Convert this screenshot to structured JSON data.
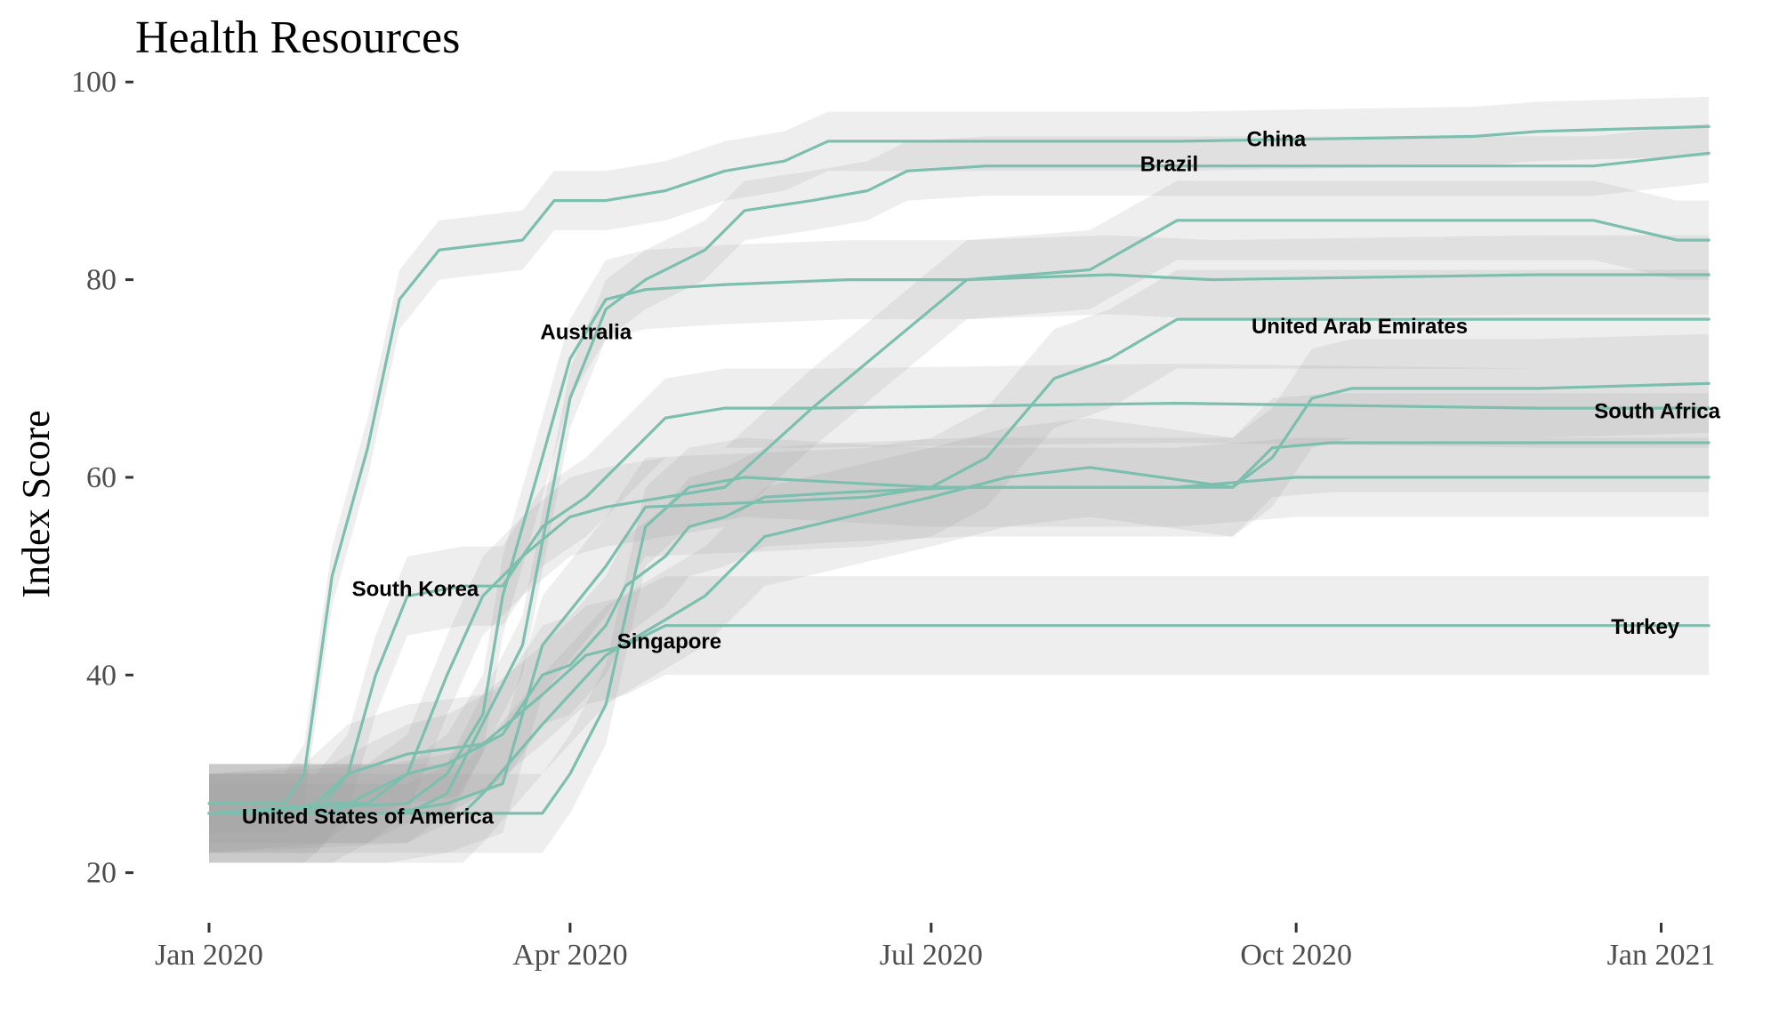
{
  "chart_data": {
    "type": "line",
    "title": "Health Resources",
    "xlabel": "",
    "ylabel": "Index Score",
    "ylim": [
      17,
      102
    ],
    "xlim": [
      "2020-01-01",
      "2021-01-15"
    ],
    "yticks": [
      20,
      40,
      60,
      80,
      100
    ],
    "xticks": [
      {
        "date": "2020-01-01",
        "label": "Jan 2020"
      },
      {
        "date": "2020-04-01",
        "label": "Apr 2020"
      },
      {
        "date": "2020-07-01",
        "label": "Jul 2020"
      },
      {
        "date": "2020-10-01",
        "label": "Oct 2020"
      },
      {
        "date": "2021-01-01",
        "label": "Jan 2021"
      }
    ],
    "grid": false,
    "legend": "none (direct labels)",
    "line_color": "#7dbfae",
    "band_color": "#999999",
    "series": [
      {
        "name": "China",
        "label_at": "2020-09-26",
        "uncertainty": 3,
        "points": [
          [
            "2020-01-01",
            27
          ],
          [
            "2020-01-20",
            27
          ],
          [
            "2020-01-25",
            30
          ],
          [
            "2020-02-01",
            50
          ],
          [
            "2020-02-10",
            63
          ],
          [
            "2020-02-18",
            78
          ],
          [
            "2020-02-28",
            83
          ],
          [
            "2020-03-20",
            84
          ],
          [
            "2020-03-28",
            88
          ],
          [
            "2020-04-10",
            88
          ],
          [
            "2020-04-25",
            89
          ],
          [
            "2020-05-10",
            91
          ],
          [
            "2020-05-25",
            92
          ],
          [
            "2020-06-05",
            94
          ],
          [
            "2020-07-15",
            94
          ],
          [
            "2020-09-01",
            94
          ],
          [
            "2020-11-15",
            94.5
          ],
          [
            "2020-12-01",
            95
          ],
          [
            "2021-01-13",
            95.5
          ]
        ]
      },
      {
        "name": "Brazil",
        "label_at": "2020-08-30",
        "uncertainty": 3,
        "points": [
          [
            "2020-01-01",
            26
          ],
          [
            "2020-02-20",
            26
          ],
          [
            "2020-03-01",
            28
          ],
          [
            "2020-03-20",
            43
          ],
          [
            "2020-04-01",
            68
          ],
          [
            "2020-04-10",
            77
          ],
          [
            "2020-04-20",
            80
          ],
          [
            "2020-05-05",
            83
          ],
          [
            "2020-05-15",
            87
          ],
          [
            "2020-06-01",
            88
          ],
          [
            "2020-06-15",
            89
          ],
          [
            "2020-06-25",
            91
          ],
          [
            "2020-07-15",
            91.5
          ],
          [
            "2020-10-01",
            91.5
          ],
          [
            "2020-12-15",
            91.5
          ],
          [
            "2021-01-13",
            92.8
          ]
        ]
      },
      {
        "name": "Australia",
        "label_at": "2020-04-05",
        "uncertainty": 4,
        "points": [
          [
            "2020-01-01",
            26
          ],
          [
            "2020-02-20",
            27
          ],
          [
            "2020-03-01",
            30
          ],
          [
            "2020-03-10",
            36
          ],
          [
            "2020-03-15",
            48
          ],
          [
            "2020-03-25",
            62
          ],
          [
            "2020-04-01",
            72
          ],
          [
            "2020-04-10",
            78
          ],
          [
            "2020-04-20",
            79
          ],
          [
            "2020-05-10",
            79.5
          ],
          [
            "2020-06-10",
            80
          ],
          [
            "2020-07-10",
            80
          ],
          [
            "2020-08-15",
            80.5
          ],
          [
            "2020-09-10",
            80
          ],
          [
            "2020-12-01",
            80.5
          ],
          [
            "2021-01-13",
            80.5
          ]
        ]
      },
      {
        "name": "Singapore",
        "label_at": "2020-04-26",
        "uncertainty": 5,
        "points": [
          [
            "2020-01-01",
            26
          ],
          [
            "2020-02-01",
            26
          ],
          [
            "2020-02-10",
            28
          ],
          [
            "2020-02-20",
            30
          ],
          [
            "2020-03-01",
            31
          ],
          [
            "2020-03-15",
            34
          ],
          [
            "2020-03-25",
            40
          ],
          [
            "2020-04-01",
            41
          ],
          [
            "2020-04-10",
            45
          ],
          [
            "2020-04-15",
            49
          ],
          [
            "2020-04-25",
            52
          ],
          [
            "2020-05-01",
            55
          ],
          [
            "2020-05-10",
            56
          ],
          [
            "2020-05-20",
            58
          ],
          [
            "2020-06-10",
            58.5
          ],
          [
            "2020-07-10",
            59
          ],
          [
            "2020-08-20",
            59
          ],
          [
            "2020-09-15",
            59
          ],
          [
            "2020-09-25",
            63
          ],
          [
            "2020-10-10",
            63.5
          ],
          [
            "2020-12-01",
            63.5
          ],
          [
            "2021-01-13",
            63.5
          ]
        ]
      },
      {
        "name": "United Arab Emirates",
        "label_at": "2020-10-17",
        "uncertainty": 5,
        "points": [
          [
            "2020-01-01",
            26
          ],
          [
            "2020-02-15",
            26
          ],
          [
            "2020-03-01",
            27
          ],
          [
            "2020-03-15",
            29
          ],
          [
            "2020-03-25",
            43
          ],
          [
            "2020-04-10",
            51
          ],
          [
            "2020-04-20",
            57
          ],
          [
            "2020-05-20",
            57.5
          ],
          [
            "2020-06-15",
            58
          ],
          [
            "2020-07-01",
            59
          ],
          [
            "2020-07-15",
            62
          ],
          [
            "2020-08-01",
            70
          ],
          [
            "2020-08-15",
            72
          ],
          [
            "2020-09-01",
            76
          ],
          [
            "2020-09-15",
            76
          ],
          [
            "2020-12-01",
            76
          ],
          [
            "2021-01-13",
            76
          ]
        ]
      },
      {
        "name": "South Africa",
        "label_at": "2020-12-31",
        "uncertainty": 5,
        "points": [
          [
            "2020-01-01",
            26
          ],
          [
            "2020-03-05",
            26
          ],
          [
            "2020-03-10",
            28
          ],
          [
            "2020-03-25",
            35
          ],
          [
            "2020-04-10",
            42
          ],
          [
            "2020-05-05",
            48
          ],
          [
            "2020-05-20",
            54
          ],
          [
            "2020-06-10",
            56
          ],
          [
            "2020-07-01",
            58
          ],
          [
            "2020-07-20",
            60
          ],
          [
            "2020-08-10",
            61
          ],
          [
            "2020-09-15",
            59
          ],
          [
            "2020-09-25",
            62
          ],
          [
            "2020-10-05",
            68
          ],
          [
            "2020-10-15",
            69
          ],
          [
            "2020-12-01",
            69
          ],
          [
            "2021-01-13",
            69.5
          ]
        ]
      },
      {
        "name": "Turkey",
        "label_at": "2020-12-28",
        "uncertainty": 5,
        "points": [
          [
            "2020-01-01",
            26
          ],
          [
            "2020-01-25",
            26
          ],
          [
            "2020-02-05",
            30
          ],
          [
            "2020-02-20",
            32
          ],
          [
            "2020-03-10",
            33
          ],
          [
            "2020-03-25",
            38
          ],
          [
            "2020-04-05",
            42
          ],
          [
            "2020-04-15",
            43
          ],
          [
            "2020-04-25",
            45
          ],
          [
            "2020-06-01",
            45
          ],
          [
            "2020-09-01",
            45
          ],
          [
            "2020-12-01",
            45
          ],
          [
            "2021-01-13",
            45
          ]
        ]
      },
      {
        "name": "South Korea",
        "label_at": "2020-02-22",
        "uncertainty": 4,
        "points": [
          [
            "2020-01-01",
            26
          ],
          [
            "2020-01-28",
            26
          ],
          [
            "2020-02-05",
            30
          ],
          [
            "2020-02-12",
            40
          ],
          [
            "2020-02-20",
            48
          ],
          [
            "2020-03-05",
            49
          ],
          [
            "2020-03-15",
            49
          ],
          [
            "2020-03-25",
            55
          ],
          [
            "2020-04-05",
            58
          ],
          [
            "2020-04-15",
            62
          ],
          [
            "2020-04-25",
            66
          ],
          [
            "2020-05-10",
            67
          ],
          [
            "2020-06-01",
            67
          ],
          [
            "2020-09-01",
            67.5
          ],
          [
            "2020-12-01",
            67
          ],
          [
            "2021-01-13",
            67
          ]
        ]
      },
      {
        "name": "United States of America",
        "label_at": "2020-02-10",
        "uncertainty": 4,
        "points": [
          [
            "2020-01-01",
            26
          ],
          [
            "2020-02-01",
            27
          ],
          [
            "2020-02-10",
            27
          ],
          [
            "2020-02-20",
            30
          ],
          [
            "2020-03-01",
            40
          ],
          [
            "2020-03-10",
            48
          ],
          [
            "2020-03-20",
            52
          ],
          [
            "2020-04-01",
            56
          ],
          [
            "2020-04-10",
            57
          ],
          [
            "2020-05-10",
            59
          ],
          [
            "2020-06-01",
            67
          ],
          [
            "2020-07-10",
            80
          ],
          [
            "2020-08-10",
            81
          ],
          [
            "2020-09-01",
            86
          ],
          [
            "2020-10-15",
            86
          ],
          [
            "2020-12-15",
            86
          ],
          [
            "2021-01-05",
            84
          ],
          [
            "2021-01-13",
            84
          ]
        ]
      },
      {
        "name": "",
        "label_at": "",
        "uncertainty": 4,
        "points": [
          [
            "2020-01-01",
            26
          ],
          [
            "2020-03-10",
            26
          ],
          [
            "2020-03-25",
            26
          ],
          [
            "2020-04-01",
            30
          ],
          [
            "2020-04-10",
            37
          ],
          [
            "2020-04-20",
            55
          ],
          [
            "2020-05-01",
            59
          ],
          [
            "2020-05-15",
            60
          ],
          [
            "2020-07-01",
            59
          ],
          [
            "2020-09-01",
            59
          ],
          [
            "2020-10-01",
            60
          ],
          [
            "2020-12-01",
            60
          ],
          [
            "2021-01-13",
            60
          ]
        ]
      }
    ],
    "annotations": [
      {
        "text": "China",
        "x": "2020-09-26",
        "y": 94.2
      },
      {
        "text": "Brazil",
        "x": "2020-08-30",
        "y": 91.7
      },
      {
        "text": "Australia",
        "x": "2020-04-05",
        "y": 74.7
      },
      {
        "text": "United Arab Emirates",
        "x": "2020-10-17",
        "y": 75.3
      },
      {
        "text": "South Africa",
        "x": "2020-12-31",
        "y": 66.7
      },
      {
        "text": "South Korea",
        "x": "2020-02-22",
        "y": 48.7
      },
      {
        "text": "Singapore",
        "x": "2020-04-26",
        "y": 43.4
      },
      {
        "text": "Turkey",
        "x": "2020-12-28",
        "y": 44.9
      },
      {
        "text": "United States of America",
        "x": "2020-02-10",
        "y": 25.7
      }
    ]
  }
}
